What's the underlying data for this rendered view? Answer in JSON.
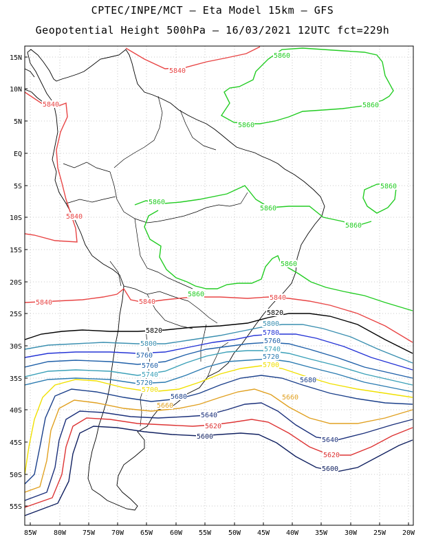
{
  "header": {
    "line1": "CPTEC/INPE/MCT –  Eta Model 15km – GFS",
    "line2": "Geopotential Height 500hPa – 16/03/2021 12UTC fct=229h"
  },
  "axes": {
    "lat_labels": [
      "15N",
      "10N",
      "5N",
      "EQ",
      "5S",
      "10S",
      "15S",
      "20S",
      "25S",
      "30S",
      "35S",
      "40S",
      "45S",
      "50S",
      "55S"
    ],
    "lon_labels": [
      "85W",
      "80W",
      "75W",
      "70W",
      "65W",
      "60W",
      "55W",
      "50W",
      "45W",
      "40W",
      "35W",
      "30W",
      "25W",
      "20W"
    ],
    "grid": "dotted"
  },
  "contours": {
    "level_colors": {
      "5860": "#22cc22",
      "5840": "#e84444",
      "5820": "#000000",
      "5800": "#3a8fb0",
      "5780": "#2433d6",
      "5760": "#1e5fa8",
      "5740": "#3aa0b8",
      "5720": "#2a7ab0",
      "5700": "#f0e000",
      "5680": "#1a3f8a",
      "5660": "#e0a020",
      "5640": "#1a2f7a",
      "5620": "#dd3333",
      "5600": "#102060"
    },
    "labels": [
      {
        "text": "5860",
        "level": "5860"
      },
      {
        "text": "5860",
        "level": "5860"
      },
      {
        "text": "5860",
        "level": "5860"
      },
      {
        "text": "5860",
        "level": "5860"
      },
      {
        "text": "5860",
        "level": "5860"
      },
      {
        "text": "5860",
        "level": "5860"
      },
      {
        "text": "5860",
        "level": "5860"
      },
      {
        "text": "5860",
        "level": "5860"
      },
      {
        "text": "5860",
        "level": "5860"
      },
      {
        "text": "5840",
        "level": "5840"
      },
      {
        "text": "5840",
        "level": "5840"
      },
      {
        "text": "5840",
        "level": "5840"
      },
      {
        "text": "5840",
        "level": "5840"
      },
      {
        "text": "5840",
        "level": "5840"
      },
      {
        "text": "5840",
        "level": "5840"
      },
      {
        "text": "5820",
        "level": "5820"
      },
      {
        "text": "5820",
        "level": "5820"
      },
      {
        "text": "5800",
        "level": "5800"
      },
      {
        "text": "5800",
        "level": "5800"
      },
      {
        "text": "5780",
        "level": "5780"
      },
      {
        "text": "5760",
        "level": "5760"
      },
      {
        "text": "5760",
        "level": "5760"
      },
      {
        "text": "5760",
        "level": "5760"
      },
      {
        "text": "5740",
        "level": "5740"
      },
      {
        "text": "5740",
        "level": "5740"
      },
      {
        "text": "5720",
        "level": "5720"
      },
      {
        "text": "5720",
        "level": "5720"
      },
      {
        "text": "5700",
        "level": "5700"
      },
      {
        "text": "5700",
        "level": "5700"
      },
      {
        "text": "5680",
        "level": "5680"
      },
      {
        "text": "5680",
        "level": "5680"
      },
      {
        "text": "5660",
        "level": "5660"
      },
      {
        "text": "5660",
        "level": "5660"
      },
      {
        "text": "5640",
        "level": "5640"
      },
      {
        "text": "5640",
        "level": "5640"
      },
      {
        "text": "5620",
        "level": "5620"
      },
      {
        "text": "5620",
        "level": "5620"
      },
      {
        "text": "5600",
        "level": "5600"
      },
      {
        "text": "5600",
        "level": "5600"
      }
    ]
  }
}
